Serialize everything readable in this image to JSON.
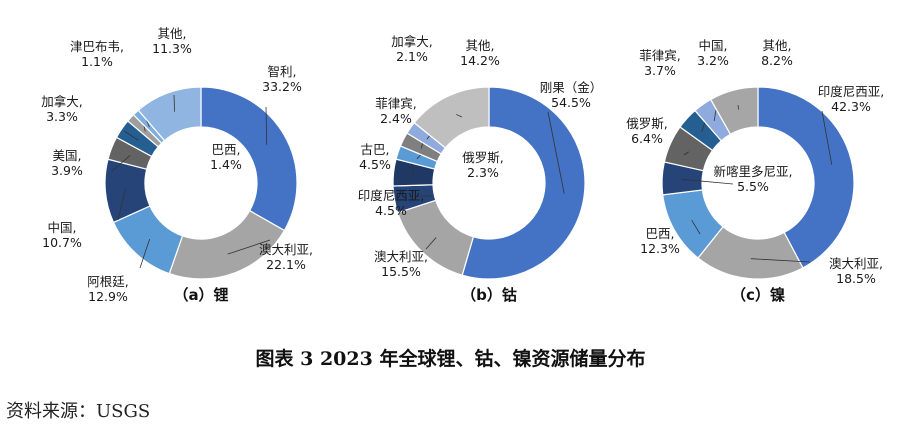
{
  "figure": {
    "caption": "图表 3   2023 年全球锂、钴、镍资源储量分布",
    "source": "资料来源：USGS"
  },
  "chart_data": [
    {
      "type": "pie",
      "donut": true,
      "panel_label": "（a）锂",
      "slices": [
        {
          "name": "智利,",
          "value": 33.2,
          "text": "33.2%",
          "color": "#4472C4"
        },
        {
          "name": "澳大利亚,",
          "value": 22.1,
          "text": "22.1%",
          "color": "#A5A5A5"
        },
        {
          "name": "阿根廷,",
          "value": 12.9,
          "text": "12.9%",
          "color": "#5B9BD5"
        },
        {
          "name": "中国,",
          "value": 10.7,
          "text": "10.7%",
          "color": "#264478"
        },
        {
          "name": "美国,",
          "value": 3.9,
          "text": "3.9%",
          "color": "#636363"
        },
        {
          "name": "加拿大,",
          "value": 3.3,
          "text": "3.3%",
          "color": "#255E91"
        },
        {
          "name": "巴西,",
          "value": 1.4,
          "text": "1.4%",
          "color": "#9E9E9E"
        },
        {
          "name": "津巴布韦,",
          "value": 1.1,
          "text": "1.1%",
          "color": "#7CAFDD"
        },
        {
          "name": "其他,",
          "value": 11.3,
          "text": "11.3%",
          "color": "#8FB5E0"
        }
      ]
    },
    {
      "type": "pie",
      "donut": true,
      "panel_label": "（b）钴",
      "slices": [
        {
          "name": "刚果（金）",
          "value": 54.5,
          "text": "54.5%",
          "color": "#4472C4"
        },
        {
          "name": "澳大利亚,",
          "value": 15.5,
          "text": "15.5%",
          "color": "#A5A5A5"
        },
        {
          "name": "印度尼西亚,",
          "value": 4.5,
          "text": "4.5%",
          "color": "#264478"
        },
        {
          "name": "古巴,",
          "value": 4.5,
          "text": "4.5%",
          "color": "#1F3864"
        },
        {
          "name": "俄罗斯,",
          "value": 2.3,
          "text": "2.3%",
          "color": "#5B9BD5"
        },
        {
          "name": "菲律宾,",
          "value": 2.4,
          "text": "2.4%",
          "color": "#7F7F7F"
        },
        {
          "name": "加拿大,",
          "value": 2.1,
          "text": "2.1%",
          "color": "#8FAADC"
        },
        {
          "name": "其他,",
          "value": 14.2,
          "text": "14.2%",
          "color": "#BFBFBF"
        }
      ]
    },
    {
      "type": "pie",
      "donut": true,
      "panel_label": "（c）镍",
      "slices": [
        {
          "name": "印度尼西亚,",
          "value": 42.3,
          "text": "42.3%",
          "color": "#4472C4"
        },
        {
          "name": "澳大利亚,",
          "value": 18.5,
          "text": "18.5%",
          "color": "#A5A5A5"
        },
        {
          "name": "巴西,",
          "value": 12.3,
          "text": "12.3%",
          "color": "#5B9BD5"
        },
        {
          "name": "新喀里多尼亚,",
          "value": 5.5,
          "text": "5.5%",
          "color": "#264478"
        },
        {
          "name": "俄罗斯,",
          "value": 6.4,
          "text": "6.4%",
          "color": "#636363"
        },
        {
          "name": "菲律宾,",
          "value": 3.7,
          "text": "3.7%",
          "color": "#255E91"
        },
        {
          "name": "中国,",
          "value": 3.2,
          "text": "3.2%",
          "color": "#8FAADC"
        },
        {
          "name": "其他,",
          "value": 8.2,
          "text": "8.2%",
          "color": "#A6A6A6"
        }
      ]
    }
  ]
}
